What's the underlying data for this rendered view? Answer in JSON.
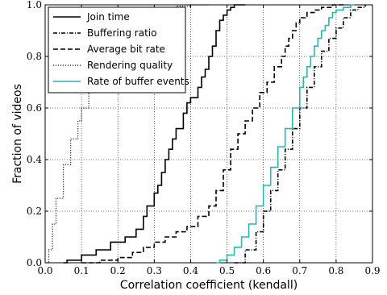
{
  "chart_data": {
    "type": "line",
    "xlabel": "Correlation coefficient (kendall)",
    "ylabel": "Fraction of videos",
    "xlim": [
      0.0,
      0.9
    ],
    "ylim": [
      0.0,
      1.0
    ],
    "xticks": [
      "0.0",
      "0.1",
      "0.2",
      "0.3",
      "0.4",
      "0.5",
      "0.6",
      "0.7",
      "0.8",
      "0.9"
    ],
    "yticks": [
      "0.0",
      "0.2",
      "0.4",
      "0.6",
      "0.8",
      "1.0"
    ],
    "grid": true,
    "legend_position": "upper-left",
    "series": [
      {
        "name": "Join time",
        "color": "#000000",
        "style": "solid",
        "x": [
          0.05,
          0.06,
          0.1,
          0.14,
          0.18,
          0.22,
          0.25,
          0.27,
          0.28,
          0.3,
          0.31,
          0.32,
          0.33,
          0.34,
          0.35,
          0.36,
          0.38,
          0.39,
          0.4,
          0.42,
          0.43,
          0.44,
          0.45,
          0.46,
          0.47,
          0.48,
          0.49,
          0.5,
          0.51,
          0.52,
          0.55
        ],
        "y": [
          0.0,
          0.01,
          0.03,
          0.05,
          0.08,
          0.1,
          0.13,
          0.18,
          0.22,
          0.27,
          0.3,
          0.35,
          0.4,
          0.44,
          0.48,
          0.52,
          0.58,
          0.62,
          0.64,
          0.68,
          0.72,
          0.75,
          0.8,
          0.84,
          0.9,
          0.94,
          0.96,
          0.98,
          0.99,
          1.0,
          1.0
        ]
      },
      {
        "name": "Buffering ratio",
        "color": "#000000",
        "style": "dashdot",
        "x": [
          0.52,
          0.55,
          0.58,
          0.6,
          0.62,
          0.64,
          0.66,
          0.68,
          0.7,
          0.72,
          0.74,
          0.76,
          0.78,
          0.8,
          0.82,
          0.84,
          0.86,
          0.88
        ],
        "y": [
          0.0,
          0.05,
          0.12,
          0.2,
          0.28,
          0.36,
          0.44,
          0.52,
          0.6,
          0.68,
          0.76,
          0.82,
          0.87,
          0.91,
          0.95,
          0.98,
          0.99,
          1.0
        ]
      },
      {
        "name": "Average bit rate",
        "color": "#000000",
        "style": "dashed",
        "x": [
          0.1,
          0.15,
          0.2,
          0.24,
          0.27,
          0.3,
          0.33,
          0.36,
          0.39,
          0.42,
          0.45,
          0.47,
          0.49,
          0.51,
          0.53,
          0.55,
          0.57,
          0.59,
          0.61,
          0.63,
          0.65,
          0.66,
          0.67,
          0.68,
          0.69,
          0.7,
          0.72,
          0.74,
          0.76,
          0.79,
          0.82
        ],
        "y": [
          0.0,
          0.01,
          0.02,
          0.04,
          0.06,
          0.08,
          0.1,
          0.12,
          0.14,
          0.18,
          0.22,
          0.28,
          0.36,
          0.44,
          0.5,
          0.55,
          0.6,
          0.66,
          0.7,
          0.76,
          0.8,
          0.84,
          0.87,
          0.9,
          0.93,
          0.95,
          0.97,
          0.98,
          0.99,
          1.0,
          1.0
        ]
      },
      {
        "name": "Rendering quality",
        "color": "#000000",
        "style": "dotted",
        "x": [
          0.005,
          0.01,
          0.02,
          0.03,
          0.05,
          0.07,
          0.09,
          0.1,
          0.12,
          0.14,
          0.16,
          0.18,
          0.2,
          0.22,
          0.25,
          0.28,
          0.32,
          0.36,
          0.4,
          0.45
        ],
        "y": [
          0.0,
          0.05,
          0.15,
          0.25,
          0.38,
          0.48,
          0.55,
          0.6,
          0.68,
          0.75,
          0.82,
          0.88,
          0.92,
          0.95,
          0.97,
          0.98,
          0.99,
          0.995,
          1.0,
          1.0
        ]
      },
      {
        "name": "Rate of buffer events",
        "color": "#2ab5b0",
        "style": "solid",
        "x": [
          0.47,
          0.48,
          0.5,
          0.52,
          0.54,
          0.56,
          0.58,
          0.6,
          0.62,
          0.64,
          0.66,
          0.68,
          0.7,
          0.71,
          0.72,
          0.73,
          0.74,
          0.75,
          0.76,
          0.77,
          0.78,
          0.79,
          0.8,
          0.82,
          0.84,
          0.85
        ],
        "y": [
          0.0,
          0.01,
          0.03,
          0.06,
          0.1,
          0.15,
          0.22,
          0.3,
          0.37,
          0.45,
          0.52,
          0.6,
          0.68,
          0.72,
          0.76,
          0.8,
          0.84,
          0.87,
          0.9,
          0.92,
          0.95,
          0.97,
          0.98,
          0.99,
          1.0,
          1.0
        ]
      }
    ]
  }
}
